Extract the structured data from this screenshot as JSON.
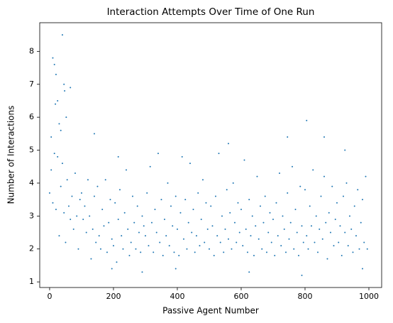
{
  "chart_data": {
    "type": "scatter",
    "title": "Interaction Attempts Over Time of One Run",
    "x_label": "Passive Agent Number",
    "y_label": "Number of Interactions",
    "color": "#1f77b4",
    "grid": false,
    "xlim": [
      -31,
      1040
    ],
    "ylim": [
      0.83,
      8.87
    ],
    "xticks": [
      0,
      200,
      400,
      600,
      800,
      1000
    ],
    "yticks": [
      1,
      2,
      3,
      4,
      5,
      6,
      7,
      8
    ],
    "x": [
      0,
      5,
      10,
      15,
      20,
      25,
      30,
      35,
      40,
      45,
      50,
      55,
      60,
      65,
      70,
      75,
      80,
      85,
      90,
      95,
      100,
      105,
      110,
      115,
      120,
      125,
      130,
      135,
      140,
      145,
      150,
      155,
      160,
      165,
      170,
      175,
      180,
      185,
      190,
      195,
      200,
      205,
      210,
      215,
      220,
      225,
      230,
      235,
      240,
      245,
      250,
      255,
      260,
      265,
      270,
      275,
      280,
      285,
      290,
      295,
      300,
      305,
      310,
      315,
      320,
      325,
      330,
      335,
      340,
      345,
      350,
      355,
      360,
      365,
      370,
      375,
      380,
      385,
      390,
      395,
      400,
      405,
      410,
      415,
      420,
      425,
      430,
      435,
      440,
      445,
      450,
      455,
      460,
      465,
      470,
      475,
      480,
      485,
      490,
      495,
      500,
      505,
      510,
      515,
      520,
      525,
      530,
      535,
      540,
      545,
      550,
      555,
      560,
      565,
      570,
      575,
      580,
      585,
      590,
      595,
      600,
      605,
      610,
      615,
      620,
      625,
      630,
      635,
      640,
      645,
      650,
      655,
      660,
      665,
      670,
      675,
      680,
      685,
      690,
      695,
      700,
      705,
      710,
      715,
      720,
      725,
      730,
      735,
      740,
      745,
      750,
      755,
      760,
      765,
      770,
      775,
      780,
      785,
      790,
      795,
      800,
      805,
      810,
      815,
      820,
      825,
      830,
      835,
      840,
      845,
      850,
      855,
      860,
      865,
      870,
      875,
      880,
      885,
      890,
      895,
      900,
      905,
      910,
      915,
      920,
      925,
      930,
      935,
      940,
      945,
      950,
      955,
      960,
      965,
      970,
      975,
      980,
      985,
      990,
      995,
      5,
      10,
      15,
      20,
      18,
      25,
      35,
      40,
      45,
      65,
      47,
      52,
      30,
      140,
      215,
      560,
      745,
      805,
      860,
      925,
      790,
      290,
      625,
      195,
      395,
      980
    ],
    "y": [
      3.7,
      4.4,
      3.4,
      4.9,
      3.2,
      4.8,
      2.4,
      3.9,
      4.6,
      3.1,
      2.2,
      4.1,
      3.3,
      2.9,
      3.6,
      2.6,
      4.3,
      3.0,
      2.0,
      3.5,
      3.7,
      2.9,
      3.3,
      2.5,
      4.1,
      3.0,
      1.7,
      2.6,
      3.6,
      2.2,
      3.9,
      2.4,
      2.0,
      3.2,
      2.7,
      4.1,
      1.9,
      2.8,
      3.5,
      2.3,
      2.1,
      3.4,
      1.6,
      2.9,
      3.8,
      2.4,
      2.0,
      3.1,
      4.4,
      2.6,
      1.8,
      2.2,
      3.6,
      2.8,
      2.0,
      3.3,
      2.5,
      1.9,
      3.0,
      2.7,
      2.4,
      3.7,
      2.1,
      4.5,
      2.8,
      1.9,
      3.2,
      2.5,
      4.9,
      2.2,
      3.5,
      1.8,
      2.9,
      2.4,
      4.0,
      2.1,
      3.3,
      2.7,
      1.9,
      3.6,
      2.6,
      1.8,
      3.1,
      4.8,
      2.3,
      3.5,
      2.0,
      2.8,
      4.6,
      2.5,
      3.2,
      1.9,
      2.4,
      3.7,
      2.1,
      2.9,
      4.1,
      2.2,
      3.4,
      2.6,
      2.0,
      3.3,
      2.7,
      1.8,
      3.6,
      2.4,
      4.9,
      2.2,
      3.0,
      1.9,
      2.6,
      3.8,
      2.3,
      3.1,
      2.0,
      4.0,
      2.8,
      2.2,
      3.4,
      2.5,
      3.2,
      2.1,
      4.7,
      2.6,
      1.9,
      3.5,
      2.4,
      3.0,
      1.8,
      2.7,
      4.2,
      2.3,
      3.3,
      2.0,
      2.8,
      3.6,
      1.9,
      2.5,
      3.1,
      2.2,
      2.9,
      1.8,
      3.4,
      2.4,
      4.3,
      2.1,
      3.0,
      2.6,
      1.9,
      3.7,
      2.3,
      2.8,
      4.5,
      2.0,
      3.2,
      2.5,
      1.8,
      3.9,
      2.7,
      2.2,
      3.8,
      2.4,
      2.0,
      3.3,
      2.7,
      4.4,
      2.2,
      3.0,
      1.9,
      2.6,
      3.6,
      2.3,
      4.2,
      2.8,
      1.7,
      3.1,
      2.5,
      3.9,
      2.1,
      2.9,
      3.4,
      2.2,
      2.7,
      1.8,
      3.6,
      2.5,
      4.0,
      2.1,
      3.0,
      2.6,
      1.9,
      3.3,
      2.4,
      3.8,
      2.0,
      2.8,
      3.5,
      2.2,
      4.2,
      2.0,
      5.4,
      7.8,
      7.6,
      7.3,
      6.4,
      6.5,
      5.6,
      8.5,
      7.0,
      6.9,
      6.8,
      6.0,
      5.8,
      5.5,
      4.8,
      5.2,
      5.4,
      5.9,
      5.4,
      5.0,
      1.2,
      1.3,
      1.3,
      1.4,
      1.4,
      1.4
    ]
  }
}
